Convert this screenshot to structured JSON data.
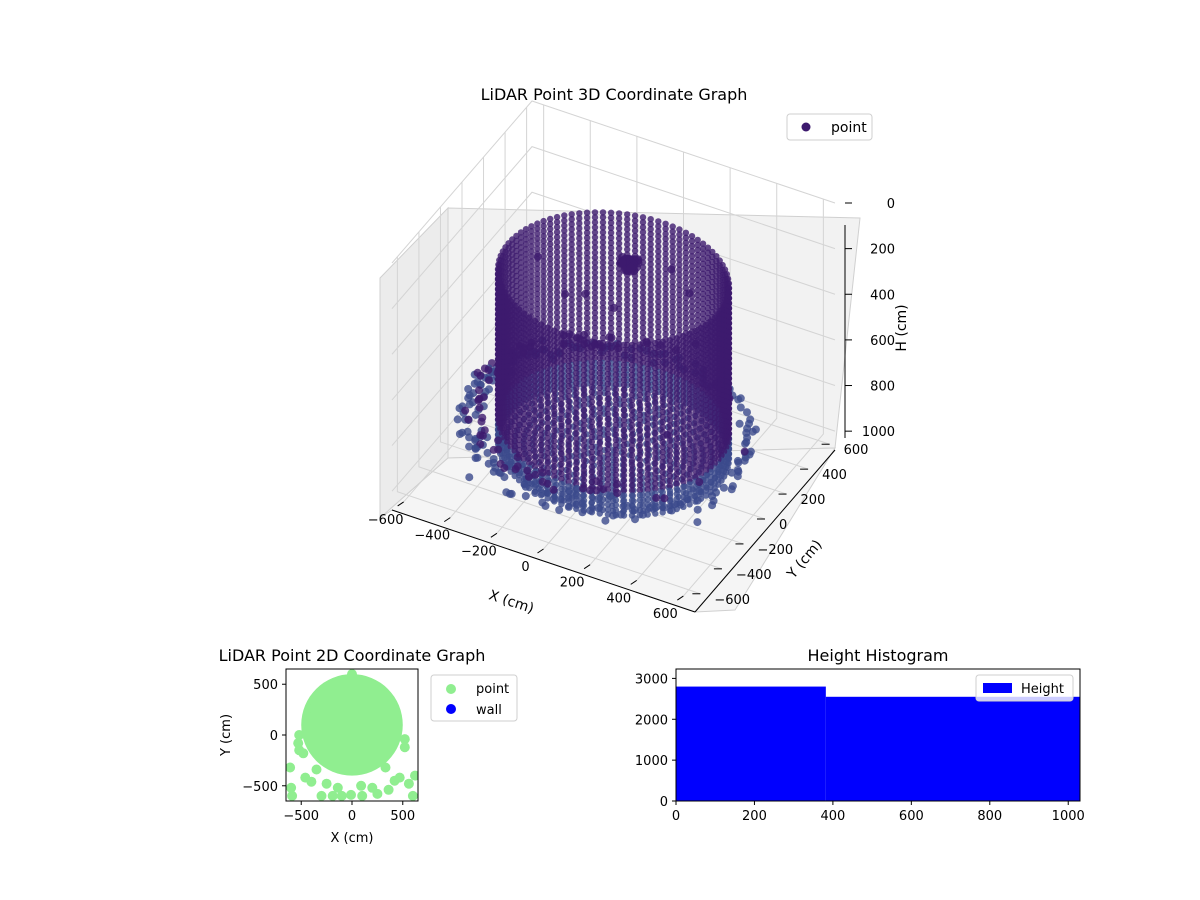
{
  "chart_data": [
    {
      "type": "scatter3d",
      "title": "LiDAR Point 3D Coordinate Graph",
      "xlabel": "X (cm)",
      "ylabel": "Y (cm)",
      "zlabel": "H (cm)",
      "xlim": [
        -650,
        650
      ],
      "ylim": [
        -650,
        650
      ],
      "zlim": [
        0,
        1030
      ],
      "z_inverted": true,
      "x_ticks": [
        -600,
        -400,
        -200,
        0,
        200,
        400,
        600
      ],
      "y_ticks": [
        -600,
        -400,
        -200,
        0,
        200,
        400,
        600
      ],
      "z_ticks": [
        0,
        200,
        400,
        600,
        800,
        1000
      ],
      "legend": [
        "point"
      ],
      "legend_position": "upper-right",
      "point_color": "#3d1a6e",
      "series": [
        {
          "name": "point",
          "shapes": [
            {
              "kind": "cylinder_shell",
              "center": [
                0,
                0
              ],
              "radius": 450,
              "h_range": [
                200,
                950
              ],
              "h_step": 22,
              "angle_step_deg": 4
            },
            {
              "kind": "floor_disk",
              "center": [
                0,
                0
              ],
              "radius": 430,
              "h": 950
            },
            {
              "kind": "ring",
              "center": [
                -40,
                30
              ],
              "radius": 560,
              "h": 900,
              "angle_range_deg": [
                0,
                360
              ],
              "jitter": 25
            },
            {
              "kind": "ring",
              "center": [
                -40,
                30
              ],
              "radius": 520,
              "h": 860,
              "angle_range_deg": [
                110,
                300
              ],
              "jitter": 30
            },
            {
              "kind": "blob",
              "center": [
                40,
                60
              ],
              "h": 150,
              "size": 45
            }
          ],
          "scattered_points": [
            [
              -300,
              200,
              480
            ],
            [
              -260,
              300,
              520
            ],
            [
              -150,
              330,
              560
            ],
            [
              150,
              380,
              420
            ],
            [
              250,
              220,
              520
            ],
            [
              -480,
              -200,
              950
            ],
            [
              -420,
              -430,
              980
            ],
            [
              480,
              -260,
              960
            ],
            [
              -250,
              -420,
              1000
            ],
            [
              100,
              320,
              300
            ],
            [
              -200,
              260,
              700
            ],
            [
              300,
              -150,
              700
            ],
            [
              -120,
              150,
              620
            ],
            [
              60,
              180,
              560
            ],
            [
              -380,
              120,
              300
            ],
            [
              350,
              320,
              780
            ]
          ]
        }
      ]
    },
    {
      "type": "scatter",
      "title": "LiDAR Point 2D Coordinate Graph",
      "xlabel": "X (cm)",
      "ylabel": "Y (cm)",
      "xlim": [
        -650,
        650
      ],
      "ylim": [
        -650,
        650
      ],
      "x_ticks": [
        -500,
        0,
        500
      ],
      "y_ticks": [
        -500,
        0,
        500
      ],
      "legend_position": "outside-right",
      "series": [
        {
          "name": "point",
          "color": "#90ee90",
          "disk": {
            "center": [
              0,
              100
            ],
            "radius": 500
          },
          "points": [
            [
              -520,
              -150
            ],
            [
              -400,
              -460
            ],
            [
              -300,
              -600
            ],
            [
              -190,
              -600
            ],
            [
              -100,
              -600
            ],
            [
              -10,
              -590
            ],
            [
              100,
              -600
            ],
            [
              250,
              -580
            ],
            [
              360,
              -540
            ],
            [
              420,
              -450
            ],
            [
              520,
              -120
            ],
            [
              -600,
              -520
            ],
            [
              -610,
              -320
            ],
            [
              -480,
              -180
            ],
            [
              560,
              -480
            ],
            [
              620,
              -400
            ],
            [
              -250,
              -480
            ],
            [
              200,
              -520
            ],
            [
              -140,
              -520
            ],
            [
              90,
              -500
            ],
            [
              -590,
              -600
            ],
            [
              600,
              -600
            ],
            [
              -460,
              -420
            ],
            [
              470,
              -420
            ],
            [
              -350,
              -340
            ],
            [
              330,
              -320
            ],
            [
              -520,
              0
            ],
            [
              -530,
              -80
            ],
            [
              520,
              -40
            ],
            [
              -380,
              260
            ],
            [
              380,
              260
            ],
            [
              0,
              600
            ]
          ]
        },
        {
          "name": "wall",
          "color": "#0000ff",
          "points": []
        }
      ]
    },
    {
      "type": "histogram",
      "title": "Height Histogram",
      "xlim": [
        0,
        1030
      ],
      "ylim": [
        0,
        3230
      ],
      "x_ticks": [
        0,
        200,
        400,
        600,
        800,
        1000
      ],
      "y_ticks": [
        0,
        1000,
        2000,
        3000
      ],
      "color": "#0000ff",
      "legend": [
        "Height"
      ],
      "legend_position": "upper-right",
      "bins": [
        {
          "x0": 0,
          "x1": 382,
          "count": 2800
        },
        {
          "x0": 382,
          "x1": 1030,
          "count": 2550
        }
      ]
    }
  ]
}
